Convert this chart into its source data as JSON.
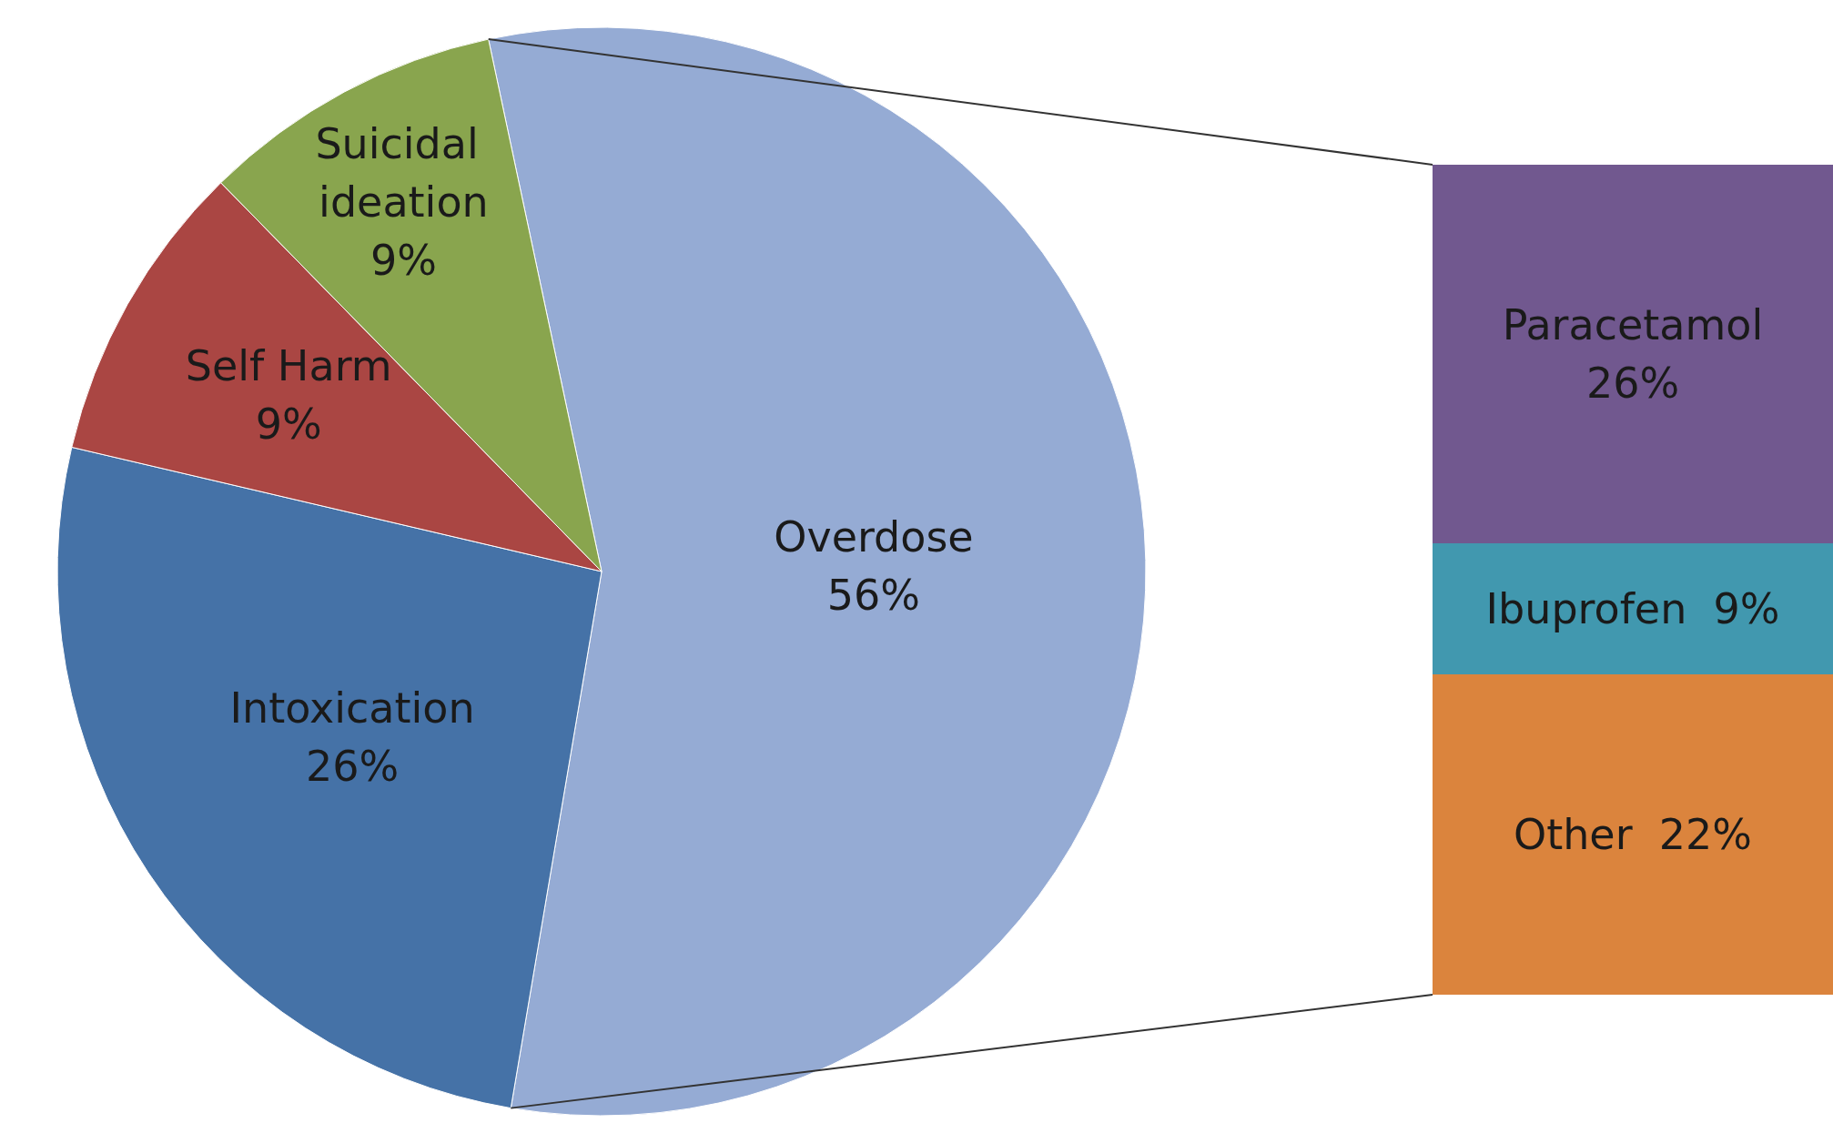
{
  "chart_data": [
    {
      "type": "pie",
      "categories": [
        "Overdose",
        "Intoxication",
        "Self Harm",
        "Suicidal ideation"
      ],
      "values": [
        56,
        26,
        9,
        9
      ],
      "colors": [
        "#95abd4",
        "#4572a7",
        "#aa4643",
        "#89a54e"
      ],
      "value_labels": [
        "56%",
        "26%",
        "9%",
        "9%"
      ]
    },
    {
      "type": "bar",
      "stacked": true,
      "categories": [
        null
      ],
      "series": [
        {
          "name": "Other",
          "color": "#db843d",
          "values": [
            22
          ],
          "value_labels": [
            "22%"
          ]
        },
        {
          "name": "Ibuprofen",
          "color": "#4198af",
          "values": [
            9
          ],
          "value_labels": [
            "9%"
          ]
        },
        {
          "name": "Paracetamol",
          "color": "#71588f",
          "values": [
            26
          ],
          "value_labels": [
            "26%"
          ]
        }
      ]
    }
  ]
}
